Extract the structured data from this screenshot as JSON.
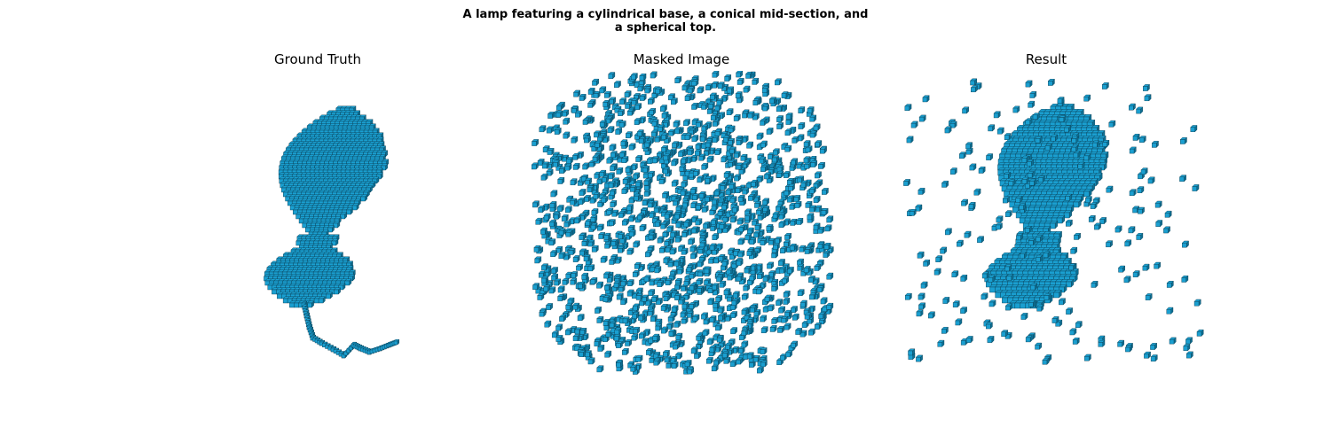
{
  "figure": {
    "title_line1": "A lamp featuring a cylindrical base, a conical mid-section, and",
    "title_line2": "a spherical top."
  },
  "panels": [
    {
      "title": "Ground Truth"
    },
    {
      "title": "Masked Image"
    },
    {
      "title": "Result"
    }
  ],
  "colors": {
    "voxel_face": "#1a9fd0",
    "voxel_shade": "#0d6f93",
    "voxel_edge": "#0a3b4f"
  }
}
